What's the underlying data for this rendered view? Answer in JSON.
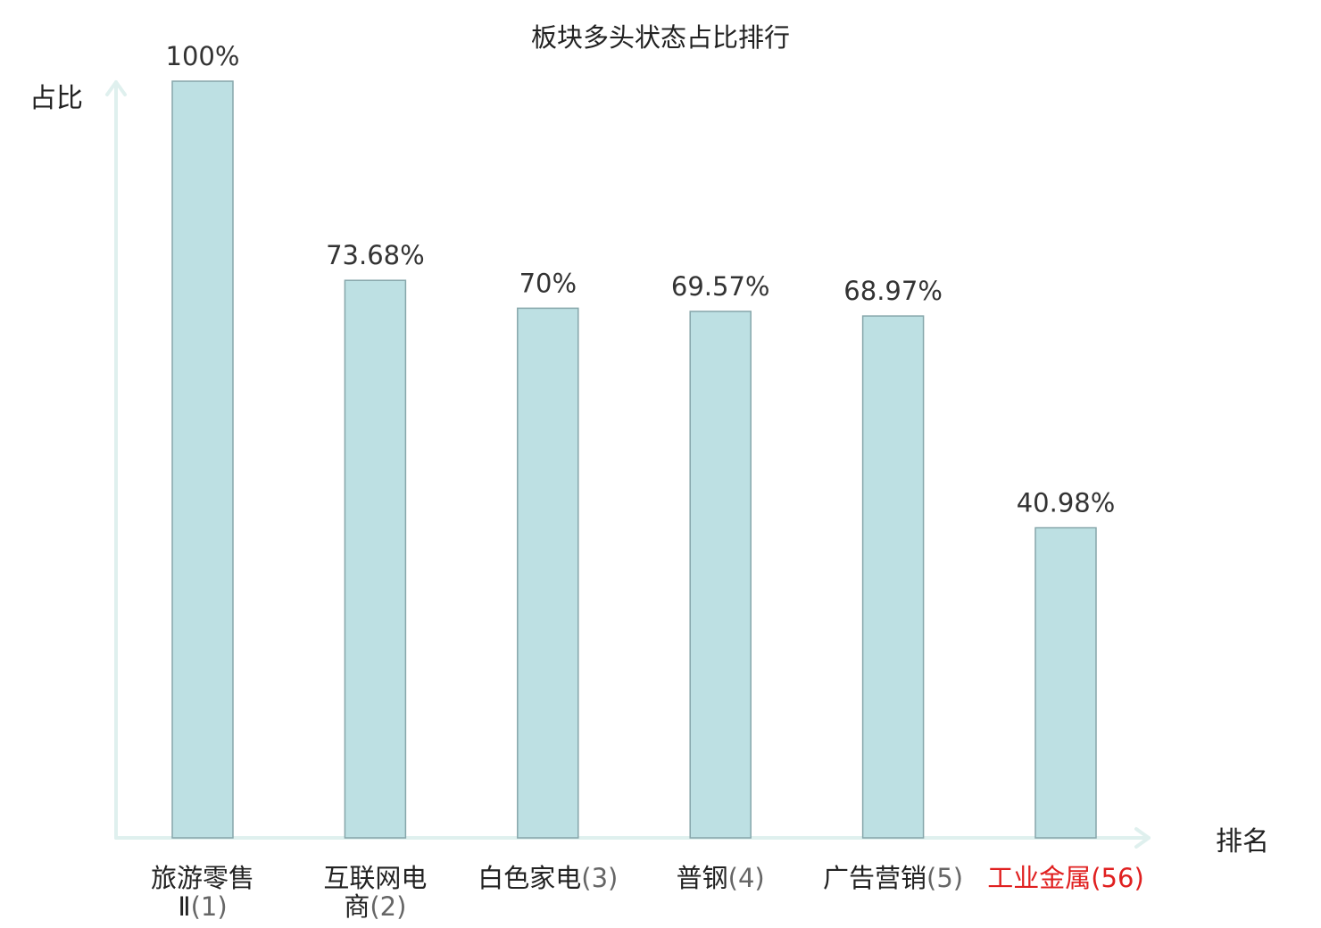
{
  "chart_data": {
    "type": "bar",
    "title": "板块多头状态占比排行",
    "ylabel": "占比",
    "xlabel": "排名",
    "ylim": [
      0,
      100
    ],
    "value_suffix": "%",
    "categories": [
      {
        "name_lines": [
          "旅游零售",
          "Ⅱ"
        ],
        "rank": "(1)",
        "highlight": false
      },
      {
        "name_lines": [
          "互联网电",
          "商"
        ],
        "rank": "(2)",
        "highlight": false
      },
      {
        "name_lines": [
          "白色家电"
        ],
        "rank": "(3)",
        "highlight": false
      },
      {
        "name_lines": [
          "普钢"
        ],
        "rank": "(4)",
        "highlight": false
      },
      {
        "name_lines": [
          "广告营销"
        ],
        "rank": "(5)",
        "highlight": false
      },
      {
        "name_lines": [
          "工业金属"
        ],
        "rank": "(56)",
        "highlight": true
      }
    ],
    "values": [
      100,
      73.68,
      70,
      69.57,
      68.97,
      40.98
    ],
    "value_labels": [
      "100%",
      "73.68%",
      "70%",
      "69.57%",
      "68.97%",
      "40.98%"
    ],
    "grid": false,
    "colors": {
      "bar_fill": "#bde0e3",
      "bar_stroke": "#86a6aa",
      "axis": "#dff0ee",
      "text": "#222222",
      "rank_text": "#666666",
      "highlight": "#e02020"
    }
  }
}
